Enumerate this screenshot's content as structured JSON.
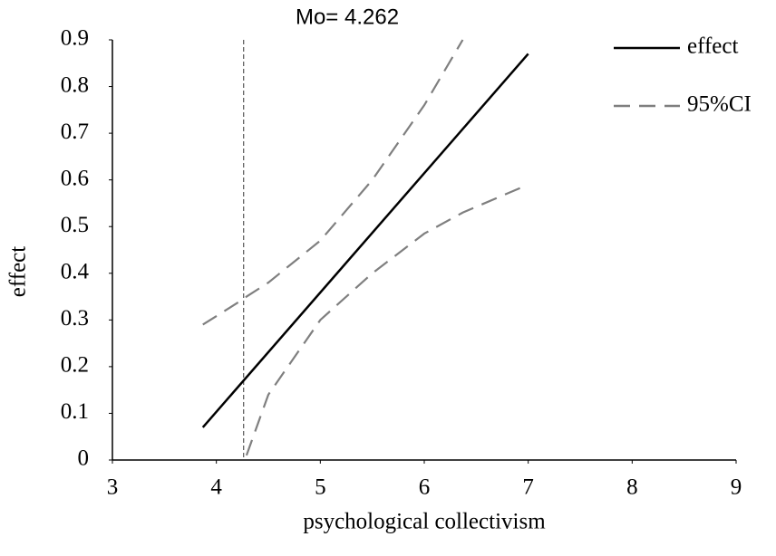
{
  "chart_data": {
    "type": "line",
    "xlabel": "psychological collectivism",
    "ylabel": "effect",
    "xlim": [
      3,
      9
    ],
    "ylim": [
      0,
      0.9
    ],
    "xticks": [
      3,
      4,
      5,
      6,
      7,
      8,
      9
    ],
    "yticks": [
      0,
      0.1,
      0.2,
      0.3,
      0.4,
      0.5,
      0.6,
      0.7,
      0.8,
      0.9
    ],
    "legend": "top-right",
    "annotation": {
      "text": "Mo= 4.262",
      "x": 4.262
    },
    "series": [
      {
        "name": "effect",
        "color": "#000000",
        "dash": false,
        "x": [
          3.87,
          7
        ],
        "values": [
          0.07,
          0.87
        ]
      },
      {
        "name": "95%CI",
        "color": "#7f7f7f",
        "dash": true,
        "x": [
          3.87,
          4.262,
          4.29,
          4.5,
          5,
          5.5,
          6,
          6.37,
          7
        ],
        "values": [
          0.29,
          0.345,
          0.35,
          0.38,
          0.47,
          0.6,
          0.76,
          0.9,
          null
        ],
        "lower": [
          null,
          null,
          0.01,
          0.14,
          0.3,
          0.4,
          0.485,
          0.53,
          0.59
        ]
      }
    ]
  }
}
